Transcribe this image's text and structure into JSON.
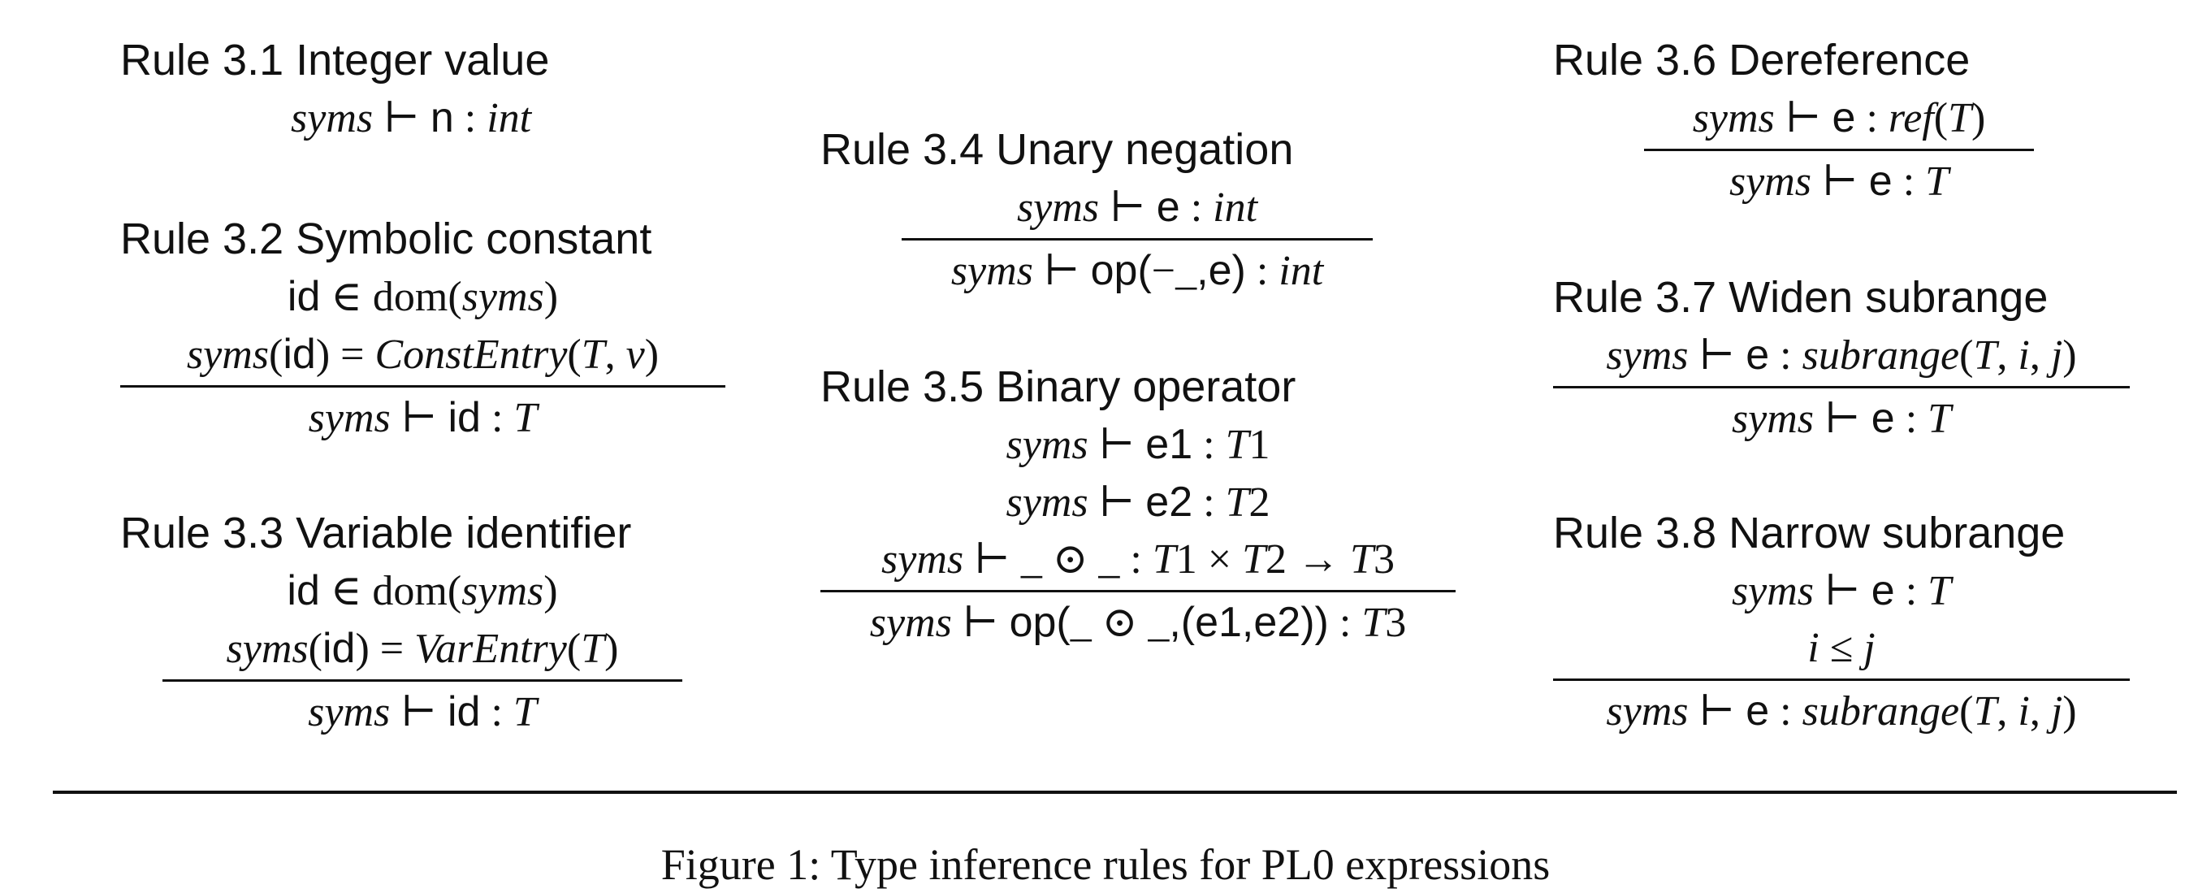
{
  "rules": [
    {
      "id": "rule-3-1",
      "title": "Rule 3.1 Integer value",
      "premises": [],
      "conclusion": "syms ⊢ n : int",
      "has_bar": false
    },
    {
      "id": "rule-3-2",
      "title": "Rule 3.2 Symbolic constant",
      "premises": [
        "id ∈ dom(syms)",
        "syms(id) = ConstEntry(T, v)"
      ],
      "conclusion": "syms ⊢ id : T",
      "has_bar": true
    },
    {
      "id": "rule-3-3",
      "title": "Rule 3.3 Variable identifier",
      "premises": [
        "id ∈ dom(syms)",
        "syms(id) = VarEntry(T)"
      ],
      "conclusion": "syms ⊢ id : T",
      "has_bar": true
    },
    {
      "id": "rule-3-4",
      "title": "Rule 3.4 Unary negation",
      "premises": [
        "syms ⊢ e : int"
      ],
      "conclusion": "syms ⊢ op(−_,e) : int",
      "has_bar": true
    },
    {
      "id": "rule-3-5",
      "title": "Rule 3.5 Binary operator",
      "premises": [
        "syms ⊢ e1 : T1",
        "syms ⊢ e2 : T2",
        "syms ⊢ _ ⊙ _ : T1 × T2 → T3"
      ],
      "conclusion": "syms ⊢ op(_ ⊙ _,(e1,e2)) : T3",
      "has_bar": true
    },
    {
      "id": "rule-3-6",
      "title": "Rule 3.6 Dereference",
      "premises": [
        "syms ⊢ e : ref(T)"
      ],
      "conclusion": "syms ⊢ e : T",
      "has_bar": true
    },
    {
      "id": "rule-3-7",
      "title": "Rule 3.7 Widen subrange",
      "premises": [
        "syms ⊢ e : subrange(T, i, j)"
      ],
      "conclusion": "syms ⊢ e : T",
      "has_bar": true
    },
    {
      "id": "rule-3-8",
      "title": "Rule 3.8 Narrow subrange",
      "premises": [
        "syms ⊢ e : T",
        "i ≤ j"
      ],
      "conclusion": "syms ⊢ e : subrange(T, i, j)",
      "has_bar": true
    }
  ],
  "caption": "Figure 1: Type inference rules for PL0 expressions"
}
